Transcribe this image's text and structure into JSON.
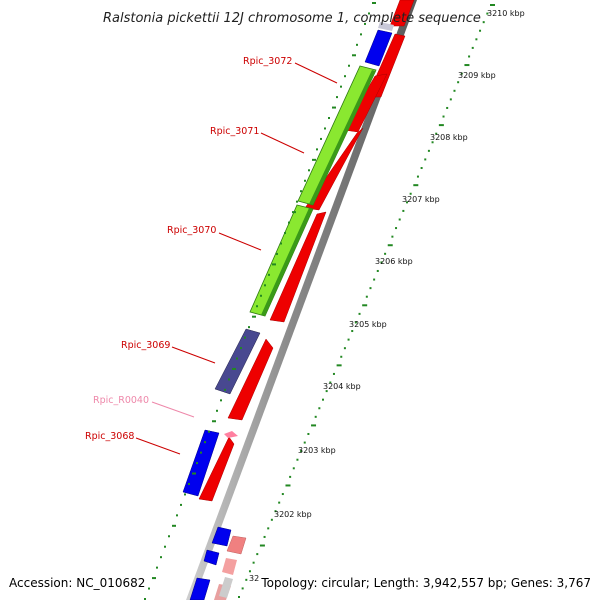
{
  "title": "Ralstonia pickettii 12J chromosome 1, complete sequence",
  "accession": "Accession: NC_010682",
  "topology": "Topology: circular; Length: 3,942,557 bp; Genes: 3,767",
  "colors": {
    "forward_cds": "#ee0000",
    "reverse_cds": "#0000ee",
    "purple_cds": "#484890",
    "green_region": "#80e020",
    "pink_feature": "#ff80a0",
    "ticks": "#228822",
    "backbone": "#999999",
    "gene_label_red": "#cc0000",
    "gene_label_pink": "#ee88aa"
  },
  "scale_labels": [
    "3210 kbp",
    "3209 kbp",
    "3208 kbp",
    "3207 kbp",
    "3206 kbp",
    "3205 kbp",
    "3204 kbp",
    "3203 kbp",
    "3202 kbp",
    "32"
  ],
  "gene_labels": [
    {
      "text": "Rpic_3072",
      "color": "red"
    },
    {
      "text": "Rpic_3071",
      "color": "red"
    },
    {
      "text": "Rpic_3070",
      "color": "red"
    },
    {
      "text": "Rpic_3069",
      "color": "red"
    },
    {
      "text": "Rpic_R0040",
      "color": "pink"
    },
    {
      "text": "Rpic_3068",
      "color": "red"
    }
  ]
}
